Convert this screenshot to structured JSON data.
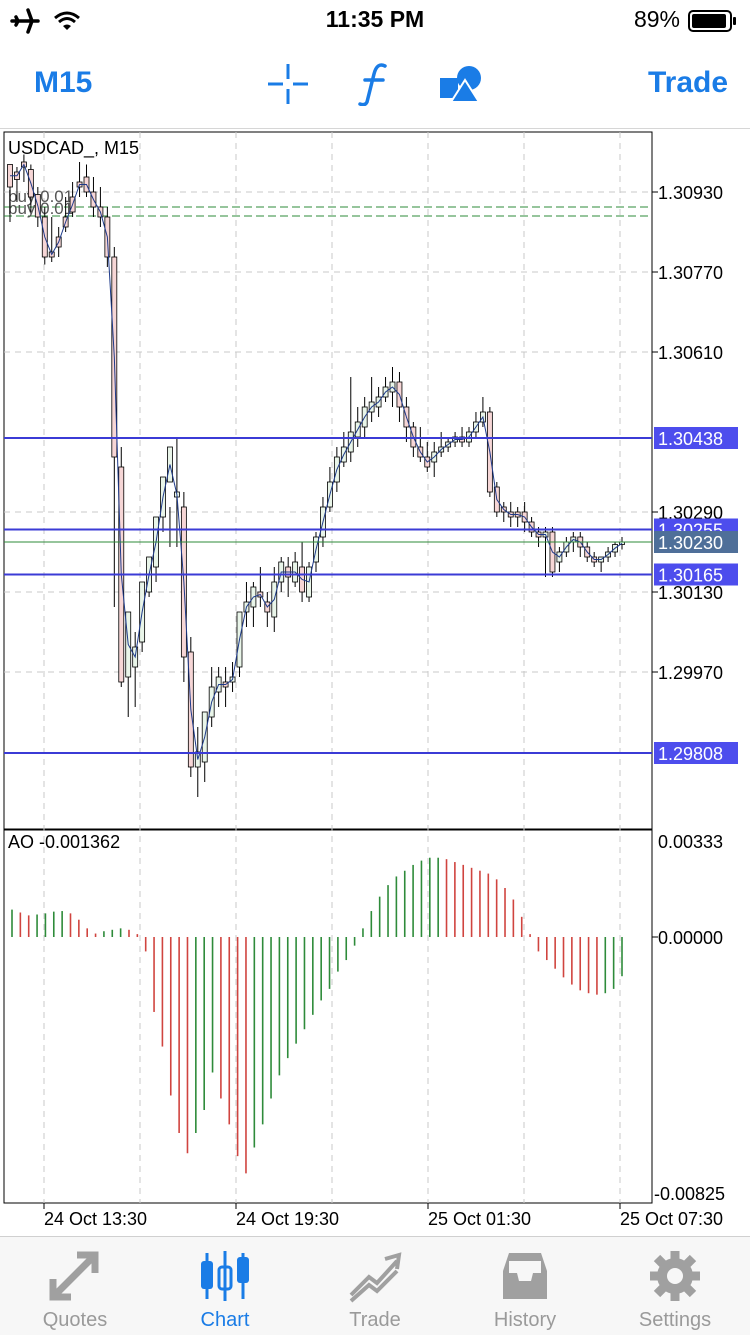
{
  "status_bar": {
    "time": "11:35 PM",
    "battery": "89%"
  },
  "toolbar": {
    "timeframe": "M15",
    "trade_label": "Trade",
    "icons": [
      "crosshair-icon",
      "indicators-icon",
      "objects-icon"
    ]
  },
  "chart": {
    "symbol_label": "USDCAD_, M15",
    "order_labels": [
      "buy 0.01",
      "buy 0.01"
    ],
    "price_axis": [
      "1.30930",
      "1.30770",
      "1.30610",
      "1.30290",
      "1.30130",
      "1.29970"
    ],
    "levels": [
      {
        "label": "1.30438",
        "value": 1.30438
      },
      {
        "label": "1.30255",
        "value": 1.30255
      },
      {
        "label": "1.30165",
        "value": 1.30165
      },
      {
        "label": "1.29808",
        "value": 1.29808
      }
    ],
    "current_price": {
      "label": "1.30230",
      "value": 1.3023
    },
    "indicator_label": "AO  -0.001362",
    "ao_axis": [
      "0.00333",
      "0.00000",
      "-0.00825"
    ],
    "time_axis": [
      "24 Oct 13:30",
      "24 Oct 19:30",
      "25 Oct 01:30",
      "25 Oct 07:30"
    ],
    "colors": {
      "up": "#2e8b3a",
      "down": "#d0443f",
      "level": "#3b3bd6",
      "label_bg": "#4d4ded",
      "current_bg": "#4f6f99"
    }
  },
  "tabbar": {
    "active": "Chart",
    "items": [
      {
        "label": "Quotes",
        "icon": "quotes-icon"
      },
      {
        "label": "Chart",
        "icon": "chart-icon"
      },
      {
        "label": "Trade",
        "icon": "trade-icon"
      },
      {
        "label": "History",
        "icon": "history-icon"
      },
      {
        "label": "Settings",
        "icon": "settings-icon"
      }
    ]
  }
}
